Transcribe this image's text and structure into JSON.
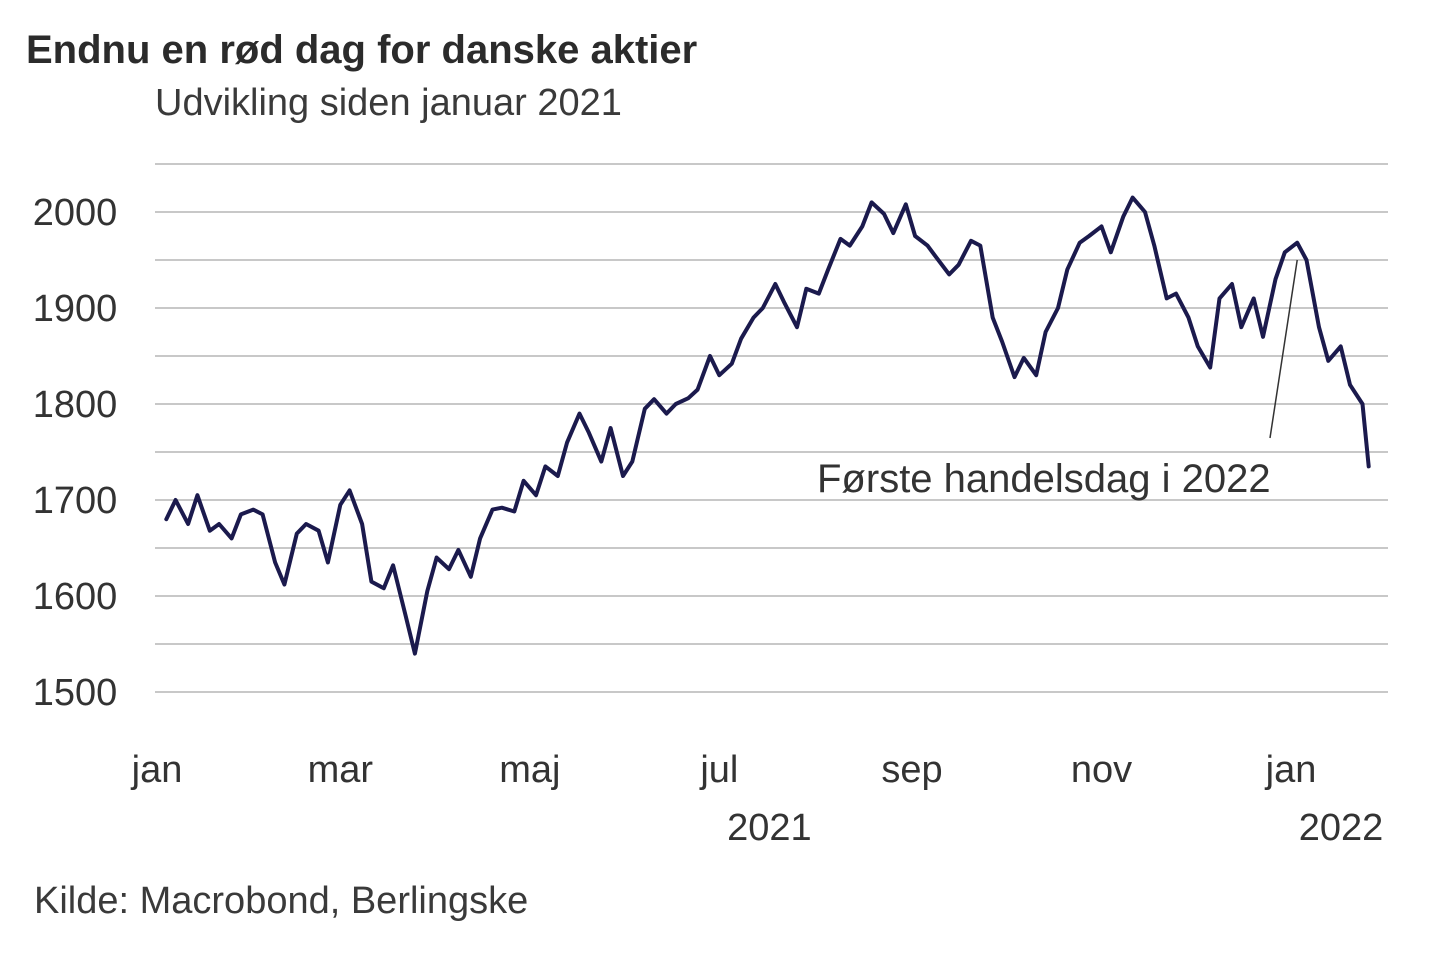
{
  "chart_data": {
    "type": "line",
    "title": "Endnu en rød dag for danske aktier",
    "subtitle": "Udvikling siden januar 2021",
    "source": "Kilde: Macrobond, Berlingske",
    "x_ticks": [
      {
        "date": "2021-01-01",
        "label": "jan",
        "year": ""
      },
      {
        "date": "2021-03-01",
        "label": "mar",
        "year": ""
      },
      {
        "date": "2021-05-01",
        "label": "maj",
        "year": ""
      },
      {
        "date": "2021-07-01",
        "label": "jul",
        "year": "2021"
      },
      {
        "date": "2021-09-01",
        "label": "sep",
        "year": ""
      },
      {
        "date": "2021-11-01",
        "label": "nov",
        "year": ""
      },
      {
        "date": "2022-01-01",
        "label": "jan",
        "year": "2022"
      }
    ],
    "xlim": [
      "2021-01-01",
      "2022-01-26"
    ],
    "y_ticks": [
      1500,
      1600,
      1700,
      1800,
      1900,
      2000
    ],
    "ylim": [
      1500,
      2050
    ],
    "grid": true,
    "line_color": "#1b1a4d",
    "annotation": {
      "text": "Første handelsdag i 2022",
      "date": "2022-01-03",
      "value": 1950
    },
    "series": [
      {
        "name": "",
        "x": [
          "2021-01-04",
          "2021-01-07",
          "2021-01-11",
          "2021-01-14",
          "2021-01-18",
          "2021-01-21",
          "2021-01-25",
          "2021-01-28",
          "2021-02-01",
          "2021-02-04",
          "2021-02-08",
          "2021-02-11",
          "2021-02-15",
          "2021-02-18",
          "2021-02-22",
          "2021-02-25",
          "2021-03-01",
          "2021-03-04",
          "2021-03-08",
          "2021-03-11",
          "2021-03-15",
          "2021-03-18",
          "2021-03-22",
          "2021-03-25",
          "2021-03-29",
          "2021-04-01",
          "2021-04-05",
          "2021-04-08",
          "2021-04-12",
          "2021-04-15",
          "2021-04-19",
          "2021-04-22",
          "2021-04-26",
          "2021-04-29",
          "2021-05-03",
          "2021-05-06",
          "2021-05-10",
          "2021-05-13",
          "2021-05-17",
          "2021-05-20",
          "2021-05-24",
          "2021-05-27",
          "2021-05-31",
          "2021-06-03",
          "2021-06-07",
          "2021-06-10",
          "2021-06-14",
          "2021-06-17",
          "2021-06-21",
          "2021-06-24",
          "2021-06-28",
          "2021-07-01",
          "2021-07-05",
          "2021-07-08",
          "2021-07-12",
          "2021-07-15",
          "2021-07-19",
          "2021-07-22",
          "2021-07-26",
          "2021-07-29",
          "2021-08-02",
          "2021-08-05",
          "2021-08-09",
          "2021-08-12",
          "2021-08-16",
          "2021-08-19",
          "2021-08-23",
          "2021-08-26",
          "2021-08-30",
          "2021-09-02",
          "2021-09-06",
          "2021-09-09",
          "2021-09-13",
          "2021-09-16",
          "2021-09-20",
          "2021-09-23",
          "2021-09-27",
          "2021-09-30",
          "2021-10-04",
          "2021-10-07",
          "2021-10-11",
          "2021-10-14",
          "2021-10-18",
          "2021-10-21",
          "2021-10-25",
          "2021-10-28",
          "2021-11-01",
          "2021-11-04",
          "2021-11-08",
          "2021-11-11",
          "2021-11-15",
          "2021-11-18",
          "2021-11-22",
          "2021-11-25",
          "2021-11-29",
          "2021-12-02",
          "2021-12-06",
          "2021-12-09",
          "2021-12-13",
          "2021-12-16",
          "2021-12-20",
          "2021-12-23",
          "2021-12-27",
          "2021-12-30",
          "2022-01-03",
          "2022-01-06",
          "2022-01-10",
          "2022-01-13",
          "2022-01-17",
          "2022-01-20",
          "2022-01-24",
          "2022-01-26"
        ],
        "values": [
          1680,
          1700,
          1675,
          1705,
          1668,
          1675,
          1660,
          1685,
          1690,
          1685,
          1635,
          1612,
          1665,
          1675,
          1668,
          1635,
          1695,
          1710,
          1675,
          1615,
          1608,
          1632,
          1580,
          1540,
          1605,
          1640,
          1628,
          1648,
          1620,
          1660,
          1690,
          1692,
          1688,
          1720,
          1705,
          1735,
          1725,
          1760,
          1790,
          1770,
          1740,
          1775,
          1725,
          1740,
          1795,
          1805,
          1790,
          1800,
          1806,
          1815,
          1850,
          1830,
          1842,
          1868,
          1890,
          1900,
          1925,
          1905,
          1880,
          1920,
          1915,
          1940,
          1972,
          1965,
          1985,
          2010,
          1998,
          1978,
          2008,
          1975,
          1965,
          1952,
          1935,
          1945,
          1970,
          1965,
          1890,
          1865,
          1828,
          1848,
          1830,
          1875,
          1900,
          1940,
          1968,
          1975,
          1985,
          1958,
          1995,
          2015,
          2000,
          1965,
          1910,
          1915,
          1890,
          1860,
          1838,
          1910,
          1925,
          1880,
          1910,
          1870,
          1930,
          1958,
          1968,
          1950,
          1880,
          1845,
          1860,
          1820,
          1800,
          1735
        ]
      }
    ]
  }
}
